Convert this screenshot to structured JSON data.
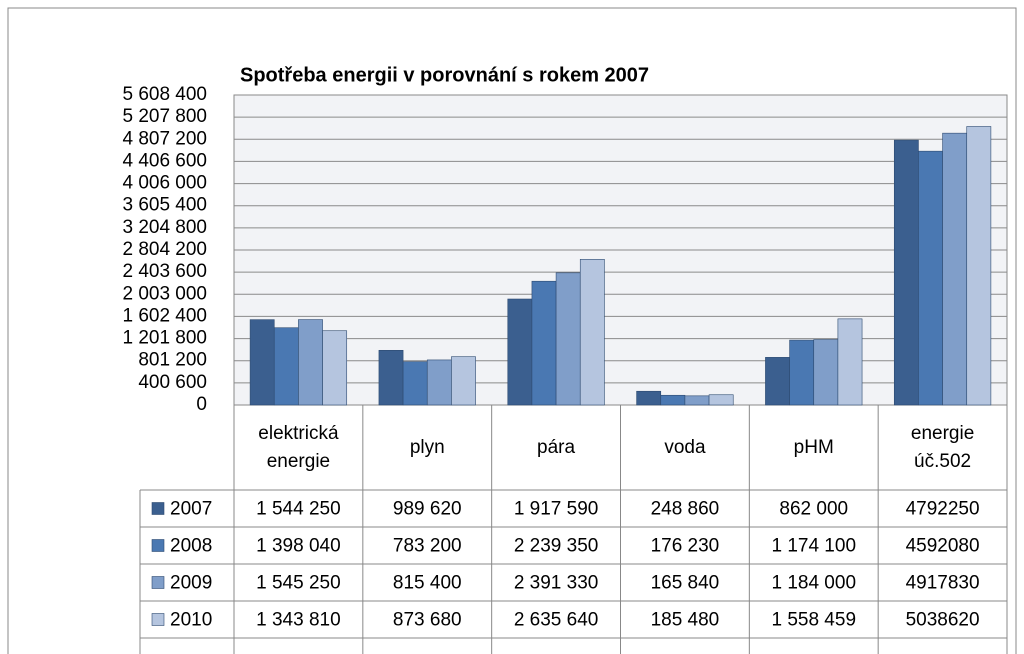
{
  "chart_data": {
    "type": "bar",
    "title": "Spotřeba energii v porovnání s rokem 2007",
    "categories": [
      "elektrická energie",
      "plyn",
      "pára",
      "voda",
      "pHM",
      "energie úč.502"
    ],
    "series": [
      {
        "name": "2007",
        "color": "#3b5f8f",
        "values": [
          1544250,
          989620,
          1917590,
          248860,
          862000,
          4792250
        ],
        "value_labels": [
          "1 544 250",
          "989 620",
          "1 917 590",
          "248 860",
          "862 000",
          "4792250"
        ]
      },
      {
        "name": "2008",
        "color": "#4a78b2",
        "values": [
          1398040,
          783200,
          2239350,
          176230,
          1174100,
          4592080
        ],
        "value_labels": [
          "1 398 040",
          "783 200",
          "2 239 350",
          "176 230",
          "1 174 100",
          "4592080"
        ]
      },
      {
        "name": "2009",
        "color": "#809ec9",
        "values": [
          1545250,
          815400,
          2391330,
          165840,
          1184000,
          4917830
        ],
        "value_labels": [
          "1 545 250",
          "815 400",
          "2 391 330",
          "165 840",
          "1 184 000",
          "4917830"
        ]
      },
      {
        "name": "2010",
        "color": "#b5c5df",
        "values": [
          1343810,
          873680,
          2635640,
          185480,
          1558459,
          5038620
        ],
        "value_labels": [
          "1 343 810",
          "873 680",
          "2 635 640",
          "185 480",
          "1 558 459",
          "5038620"
        ]
      }
    ],
    "ylim": [
      0,
      5608400
    ],
    "yticks": [
      0,
      {
        "value": 400600,
        "label": "400 600"
      },
      {
        "value": 801200,
        "label": "801 200"
      },
      {
        "value": 1201800,
        "label": "1 201 800"
      },
      {
        "value": 1602400,
        "label": "1 602 400"
      },
      {
        "value": 2003000,
        "label": "2 003 000"
      },
      {
        "value": 2403600,
        "label": "2 403 600"
      },
      {
        "value": 2804200,
        "label": "2 804 200"
      },
      {
        "value": 3204800,
        "label": "3 204 800"
      },
      {
        "value": 3605400,
        "label": "3 605 400"
      },
      {
        "value": 4006000,
        "label": "4 006 000"
      },
      {
        "value": 4406600,
        "label": "4 406 600"
      },
      {
        "value": 4807200,
        "label": "4 807 200"
      },
      {
        "value": 5207800,
        "label": "5 207 800"
      },
      {
        "value": 5608400,
        "label": "5 608 400"
      }
    ],
    "grid": true
  }
}
